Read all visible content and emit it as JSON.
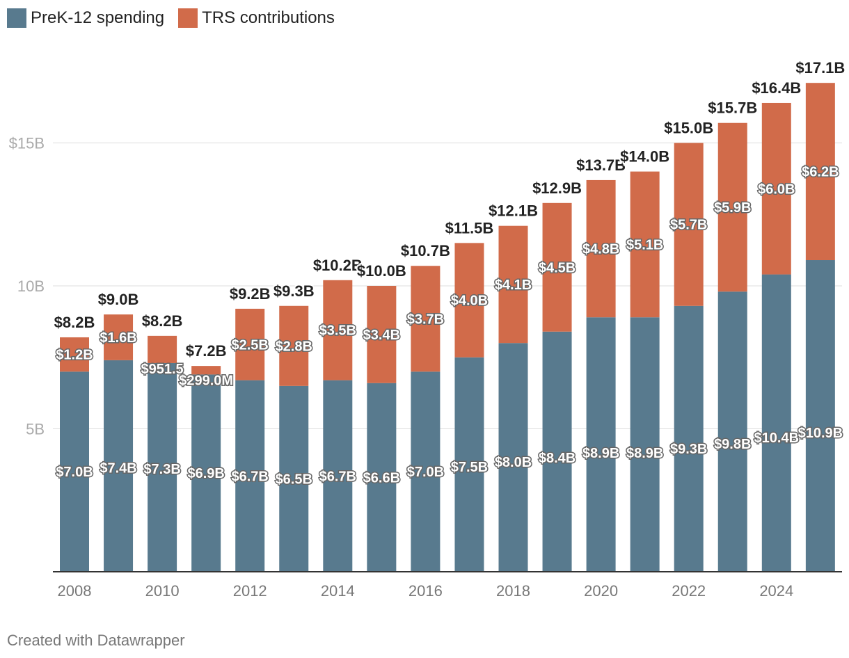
{
  "legend": {
    "items": [
      {
        "label": "PreK-12 spending",
        "color": "#587a8e"
      },
      {
        "label": "TRS contributions",
        "color": "#d16b4a"
      }
    ]
  },
  "footer": {
    "credit": "Created with Datawrapper"
  },
  "chart_data": {
    "type": "bar",
    "stacked": true,
    "categories": [
      "2008",
      "2009",
      "2010",
      "2011",
      "2012",
      "2013",
      "2014",
      "2015",
      "2016",
      "2017",
      "2018",
      "2019",
      "2020",
      "2021",
      "2022",
      "2023",
      "2024",
      "2025"
    ],
    "x_tick_labels": [
      "2008",
      "2010",
      "2012",
      "2014",
      "2016",
      "2018",
      "2020",
      "2022",
      "2024"
    ],
    "y_ticks": [
      {
        "value": 5,
        "label": "5B"
      },
      {
        "value": 10,
        "label": "10B"
      },
      {
        "value": 15,
        "label": "$15B"
      }
    ],
    "ylim": [
      0,
      18
    ],
    "grid": true,
    "legend_position": "top-left",
    "series": [
      {
        "name": "PreK-12 spending",
        "color": "#587a8e",
        "values": [
          7.0,
          7.4,
          7.3,
          6.9,
          6.7,
          6.5,
          6.7,
          6.6,
          7.0,
          7.5,
          8.0,
          8.4,
          8.9,
          8.9,
          9.3,
          9.8,
          10.4,
          10.9
        ],
        "labels": [
          "$7.0B",
          "$7.4B",
          "$7.3B",
          "$6.9B",
          "$6.7B",
          "$6.5B",
          "$6.7B",
          "$6.6B",
          "$7.0B",
          "$7.5B",
          "$8.0B",
          "$8.4B",
          "$8.9B",
          "$8.9B",
          "$9.3B",
          "$9.8B",
          "$10.4B",
          "$10.9B"
        ]
      },
      {
        "name": "TRS contributions",
        "color": "#d16b4a",
        "values": [
          1.2,
          1.6,
          0.9515,
          0.299,
          2.5,
          2.8,
          3.5,
          3.4,
          3.7,
          4.0,
          4.1,
          4.5,
          4.8,
          5.1,
          5.7,
          5.9,
          6.0,
          6.2
        ],
        "labels": [
          "$1.2B",
          "$1.6B",
          "$951.5",
          "$299.0M",
          "$2.5B",
          "$2.8B",
          "$3.5B",
          "$3.4B",
          "$3.7B",
          "$4.0B",
          "$4.1B",
          "$4.5B",
          "$4.8B",
          "$5.1B",
          "$5.7B",
          "$5.9B",
          "$6.0B",
          "$6.2B"
        ]
      }
    ],
    "totals": {
      "values": [
        8.2,
        9.0,
        8.2,
        7.2,
        9.2,
        9.3,
        10.2,
        10.0,
        10.7,
        11.5,
        12.1,
        12.9,
        13.7,
        14.0,
        15.0,
        15.7,
        16.4,
        17.1
      ],
      "labels": [
        "$8.2B",
        "$9.0B",
        "$8.2B",
        "$7.2B",
        "$9.2B",
        "$9.3B",
        "$10.2B",
        "$10.0B",
        "$10.7B",
        "$11.5B",
        "$12.1B",
        "$12.9B",
        "$13.7B",
        "$14.0B",
        "$15.0B",
        "$15.7B",
        "$16.4B",
        "$17.1B"
      ]
    }
  }
}
